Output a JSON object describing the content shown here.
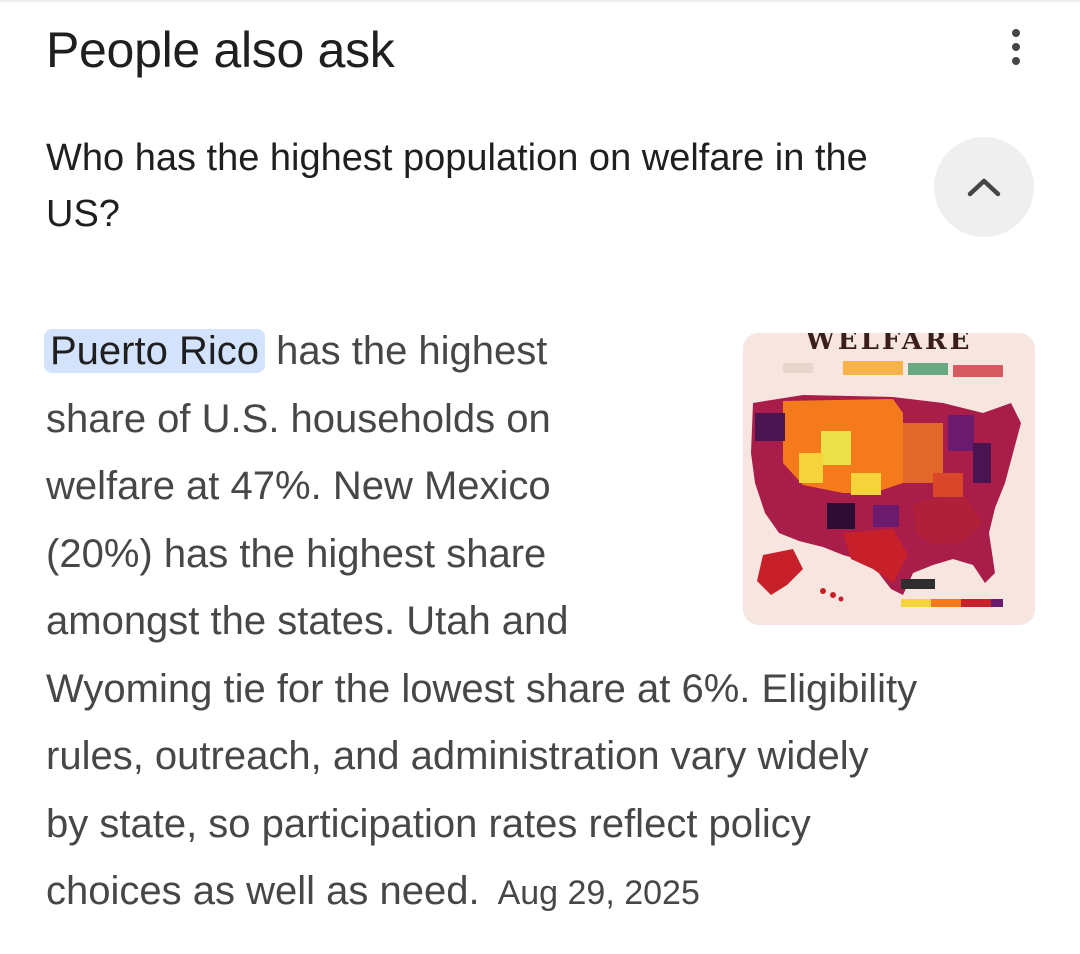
{
  "header": {
    "title": "People also ask",
    "more_icon": "more-vert-icon"
  },
  "question": {
    "text": "Who has the highest population on welfare in the US?",
    "toggle_icon": "chevron-up-icon"
  },
  "answer": {
    "highlight": "Puerto Rico",
    "lines": [
      " has the highest",
      "share of U.S. households on",
      "welfare at 47%. New Mexico",
      "(20%) has the highest share",
      "amongst the states. Utah and",
      "Wyoming tie for the lowest share at 6%. Eligibility",
      "rules, outreach, and administration vary widely",
      "by state, so participation rates reflect policy",
      "choices as well as need."
    ],
    "date": "Aug 29, 2025"
  },
  "thumbnail": {
    "title": "WELFARE",
    "colors": {
      "background": "#f6e6df",
      "orange": "#f57a1c",
      "yellow": "#f5d33a",
      "red": "#c8202a",
      "purple": "#6a1b6e",
      "dark": "#3a0f3a"
    }
  },
  "colors": {
    "highlight": "#d3e3fd",
    "text": "#1f1f1f",
    "body_text": "#474747",
    "button_bg": "#efefef"
  }
}
